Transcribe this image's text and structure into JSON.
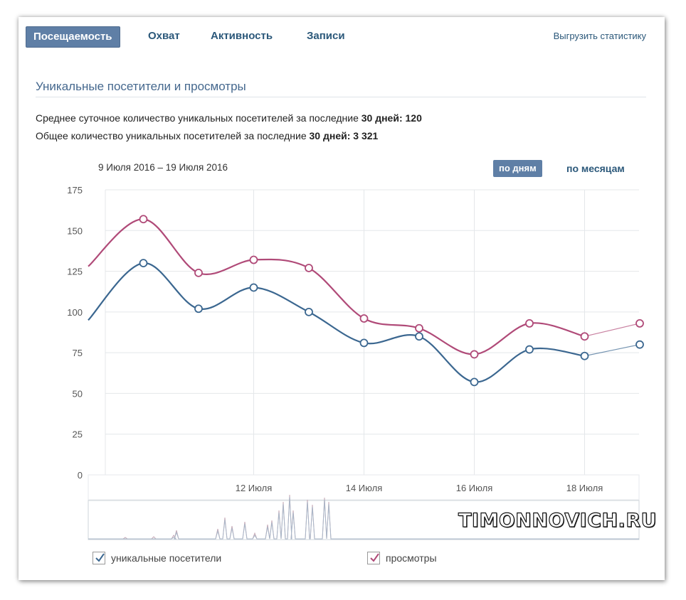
{
  "tabs": [
    {
      "label": "Посещаемость",
      "active": true
    },
    {
      "label": "Охват",
      "active": false
    },
    {
      "label": "Активность",
      "active": false
    },
    {
      "label": "Записи",
      "active": false
    }
  ],
  "export_label": "Выгрузить статистику",
  "section_title": "Уникальные посетители и просмотры",
  "stats": {
    "avg_text": "Среднее суточное количество уникальных посетителей за последние ",
    "avg_days": "30 дней:",
    "avg_value": "120",
    "total_text": "Общее количество уникальных посетителей за последние ",
    "total_days": "30 дней:",
    "total_value": "3 321"
  },
  "date_range": "9 Июля 2016 – 19 Июля 2016",
  "granularity": {
    "active": "по дням",
    "other": "по месяцам"
  },
  "watermark": "TIMONNOVICH.RU",
  "colors": {
    "unique": "#3b6790",
    "views": "#b04a78",
    "accent": "#5f7fa6"
  },
  "chart_data": {
    "type": "line",
    "x": [
      "9 Июля",
      "10 Июля",
      "11 Июля",
      "12 Июля",
      "13 Июля",
      "14 Июля",
      "15 Июля",
      "16 Июля",
      "17 Июля",
      "18 Июля",
      "19 Июля"
    ],
    "xticks": [
      "12 Июля",
      "14 Июля",
      "16 Июля",
      "18 Июля"
    ],
    "yticks": [
      "0",
      "25",
      "50",
      "75",
      "100",
      "125",
      "150",
      "175"
    ],
    "ylim": [
      0,
      175
    ],
    "grid": true,
    "series": [
      {
        "name": "уникальные посетители",
        "values": [
          95,
          130,
          102,
          115,
          100,
          81,
          85,
          57,
          77,
          73,
          80
        ]
      },
      {
        "name": "просмотры",
        "values": [
          128,
          157,
          124,
          132,
          127,
          96,
          90,
          74,
          93,
          85,
          93
        ]
      }
    ],
    "legend": "bottom"
  }
}
